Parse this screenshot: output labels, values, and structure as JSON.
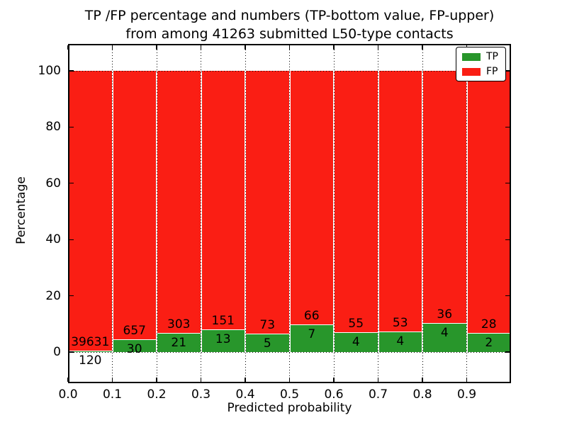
{
  "title": {
    "line1": "TP /FP percentage and numbers (TP-bottom value, FP-upper)",
    "line2": "from among 41263 submitted L50-type contacts"
  },
  "axes": {
    "x_label": "Predicted probability",
    "y_label": "Percentage",
    "x_ticks": [
      "0.0",
      "0.1",
      "0.2",
      "0.3",
      "0.4",
      "0.5",
      "0.6",
      "0.7",
      "0.8",
      "0.9"
    ],
    "y_ticks": [
      "0",
      "20",
      "40",
      "60",
      "80",
      "100"
    ]
  },
  "legend": {
    "items": [
      {
        "label": "TP",
        "color": "#28962b"
      },
      {
        "label": "FP",
        "color": "#fa1e14"
      }
    ]
  },
  "colors": {
    "tp_green": "#28962b",
    "fp_red": "#fa1e14",
    "background": "#ffffff",
    "text": "#000000"
  },
  "chart_data": {
    "type": "bar",
    "stacked": true,
    "normalized": "each bin scaled to 100%",
    "title": "TP /FP percentage and numbers (TP-bottom value, FP-upper) from among 41263 submitted L50-type contacts",
    "xlabel": "Predicted probability",
    "ylabel": "Percentage",
    "total_submitted": 41263,
    "bin_starts": [
      0.0,
      0.1,
      0.2,
      0.3,
      0.4,
      0.5,
      0.6,
      0.7,
      0.8,
      0.9
    ],
    "bin_width": 0.1,
    "series": [
      {
        "name": "TP",
        "counts": [
          120,
          30,
          21,
          13,
          5,
          7,
          4,
          4,
          4,
          2
        ]
      },
      {
        "name": "FP",
        "counts": [
          39631,
          657,
          303,
          151,
          73,
          66,
          55,
          53,
          36,
          28
        ]
      }
    ],
    "xlim": [
      0.0,
      1.0
    ],
    "ylim": [
      -11,
      110
    ],
    "grid": true,
    "grid_style": "dotted",
    "legend_position": "upper right",
    "label_rule": "FP count printed above green/red boundary, TP count printed below it"
  }
}
